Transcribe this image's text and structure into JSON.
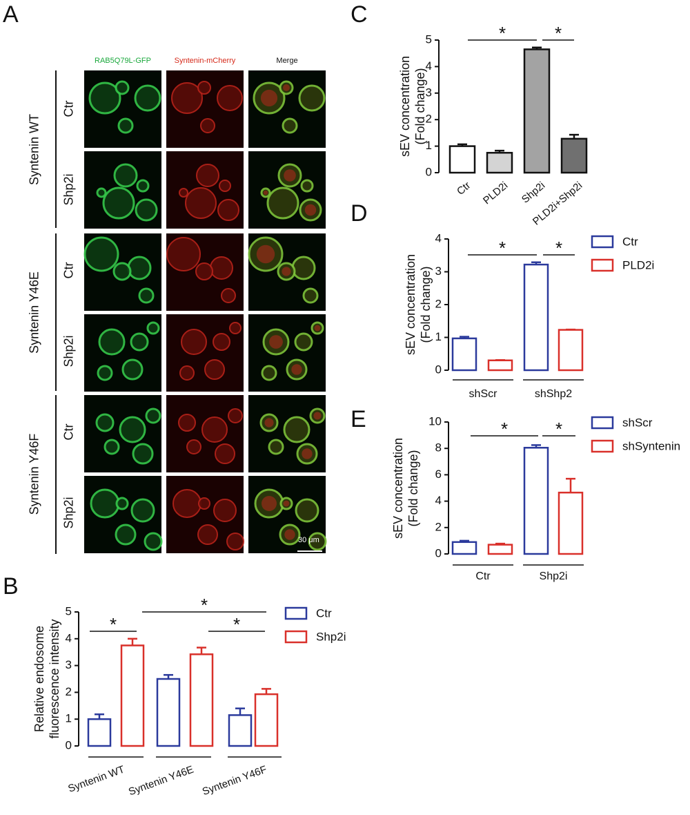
{
  "panel_labels": {
    "A": "A",
    "B": "B",
    "C": "C",
    "D": "D",
    "E": "E"
  },
  "panel_a": {
    "column_headers": [
      "RAB5Q79L-GFP",
      "Syntenin-mCherry",
      "Merge"
    ],
    "header_colors": [
      "#1aa83c",
      "#d62a1a",
      "#111111"
    ],
    "group_labels": [
      "Syntenin WT",
      "Syntenin Y46E",
      "Syntenin Y46F"
    ],
    "row_labels": [
      "Ctr",
      "Shp2i",
      "Ctr",
      "Shp2i",
      "Ctr",
      "Shp2i"
    ],
    "scale_bar": "30 μm"
  },
  "significance": "*",
  "chart_data": [
    {
      "panel": "B",
      "type": "bar",
      "categories": [
        "Syntenin WT",
        "Syntenin Y46E",
        "Syntenin Y46F"
      ],
      "series": [
        {
          "name": "Ctr",
          "color": "#2b3a9c",
          "values": [
            1.0,
            2.5,
            1.15
          ],
          "errors": [
            0.18,
            0.15,
            0.25
          ]
        },
        {
          "name": "Shp2i",
          "color": "#d9302a",
          "values": [
            3.75,
            3.42,
            1.93
          ],
          "errors": [
            0.25,
            0.25,
            0.2
          ]
        }
      ],
      "ylabel": "Relative endosome fluorescence intensity",
      "ylabel_lines": [
        "Relative endosome",
        "fluorescence intensity"
      ],
      "yticks": [
        0,
        1,
        2,
        3,
        4,
        5
      ],
      "ylim": [
        0,
        5
      ],
      "legend": "top-right",
      "significance": [
        {
          "from": "Syntenin WT Ctr",
          "to": "Syntenin WT Shp2i"
        },
        {
          "from": "Syntenin WT Shp2i",
          "to": "Syntenin Y46F Shp2i"
        },
        {
          "from": "Syntenin Y46E Shp2i",
          "to": "Syntenin Y46F Shp2i"
        }
      ]
    },
    {
      "panel": "C",
      "type": "bar",
      "categories": [
        "Ctr",
        "PLD2i",
        "Shp2i",
        "PLD2i+Shp2i"
      ],
      "values": [
        1.0,
        0.75,
        4.65,
        1.28
      ],
      "errors": [
        0.07,
        0.08,
        0.07,
        0.15
      ],
      "colors": [
        "#ffffff",
        "#d4d4d4",
        "#a3a3a3",
        "#707070"
      ],
      "ylabel_lines": [
        "sEV concentration",
        "(Fold change)"
      ],
      "yticks": [
        0,
        1,
        2,
        3,
        4,
        5
      ],
      "ylim": [
        0,
        5
      ],
      "significance": [
        {
          "from": "Ctr",
          "to": "Shp2i"
        },
        {
          "from": "Shp2i",
          "to": "PLD2i+Shp2i"
        }
      ]
    },
    {
      "panel": "D",
      "type": "bar",
      "categories": [
        "shScr",
        "shShp2"
      ],
      "series": [
        {
          "name": "Ctr",
          "color": "#2b3a9c",
          "values": [
            0.97,
            3.22
          ],
          "errors": [
            0.05,
            0.07
          ]
        },
        {
          "name": "PLD2i",
          "color": "#d9302a",
          "values": [
            0.3,
            1.23
          ],
          "errors": [
            0.01,
            0.01
          ]
        }
      ],
      "ylabel_lines": [
        "sEV concentration",
        "(Fold change)"
      ],
      "yticks": [
        0,
        1,
        2,
        3,
        4
      ],
      "ylim": [
        0,
        4
      ],
      "legend": "top-right",
      "significance": [
        {
          "from": "shScr Ctr",
          "to": "shShp2 Ctr"
        },
        {
          "from": "shShp2 Ctr",
          "to": "shShp2 PLD2i"
        }
      ]
    },
    {
      "panel": "E",
      "type": "bar",
      "categories": [
        "Ctr",
        "Shp2i"
      ],
      "series": [
        {
          "name": "shScr",
          "color": "#2b3a9c",
          "values": [
            0.9,
            8.05
          ],
          "errors": [
            0.1,
            0.2
          ]
        },
        {
          "name": "shSyntenin",
          "color": "#d9302a",
          "values": [
            0.7,
            4.65
          ],
          "errors": [
            0.08,
            1.05
          ]
        }
      ],
      "ylabel_lines": [
        "sEV concentration",
        "(Fold change)"
      ],
      "yticks": [
        0,
        2,
        4,
        6,
        8,
        10
      ],
      "ylim": [
        0,
        10
      ],
      "legend": "top-right",
      "significance": [
        {
          "from": "Ctr shScr",
          "to": "Shp2i shScr"
        },
        {
          "from": "Shp2i shScr",
          "to": "Shp2i shSyntenin"
        }
      ]
    }
  ]
}
